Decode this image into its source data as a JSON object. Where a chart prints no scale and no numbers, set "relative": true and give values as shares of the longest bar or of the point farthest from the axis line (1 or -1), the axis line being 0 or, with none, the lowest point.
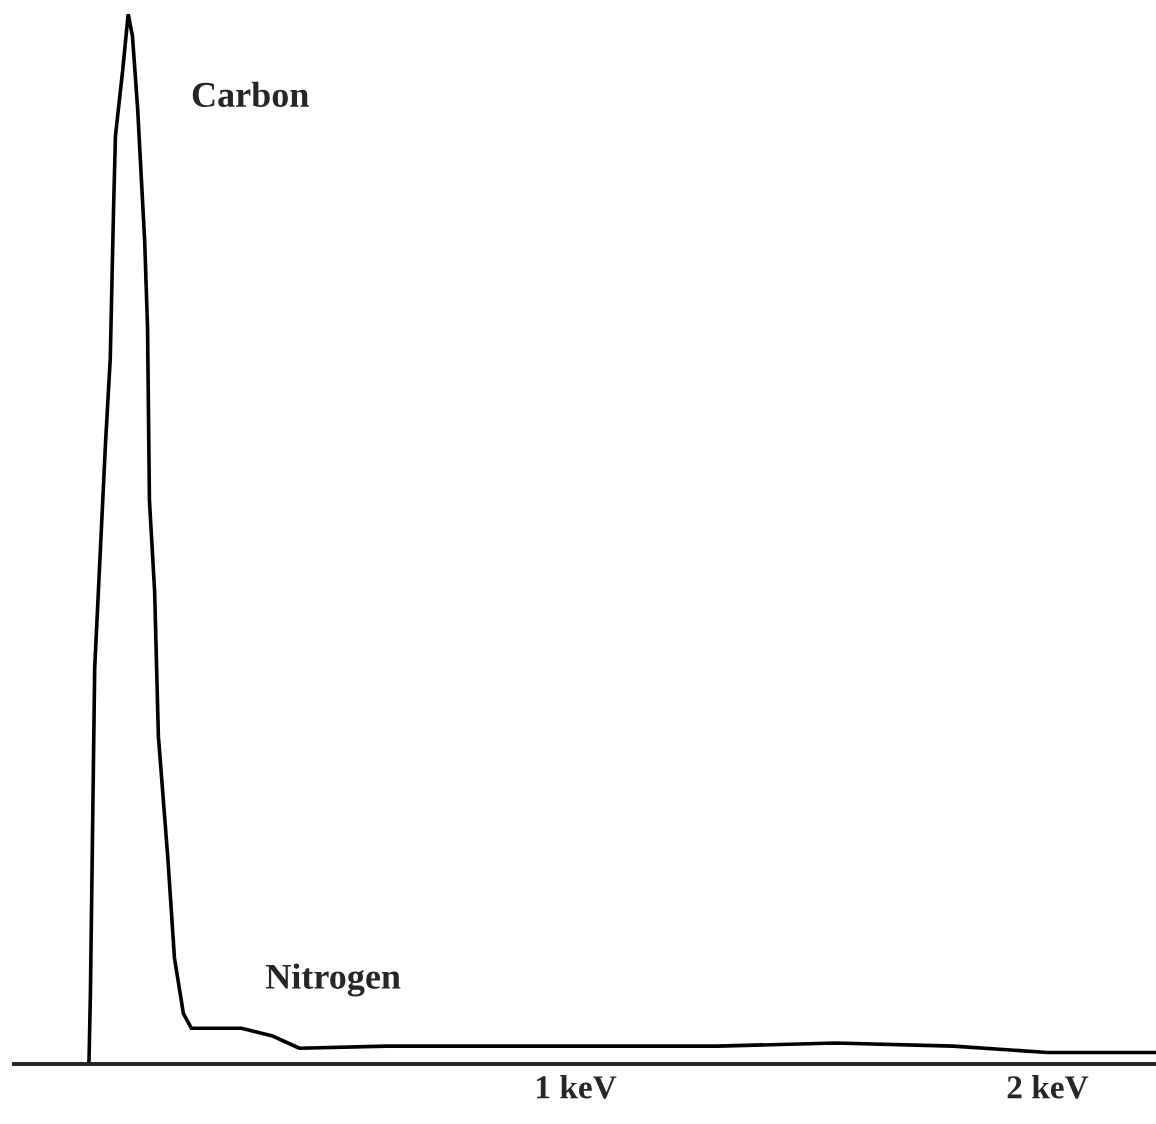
{
  "chart_data": {
    "type": "line",
    "relative": true,
    "x": [
      -0.032,
      -0.031,
      -0.028,
      -0.019,
      0.004,
      0.014,
      0.021,
      0.025,
      0.04,
      0.052,
      0.061,
      0.072,
      0.087,
      0.093,
      0.097,
      0.108,
      0.116,
      0.136,
      0.15,
      0.169,
      0.186,
      0.292,
      0.356,
      0.415,
      0.6,
      0.9,
      1.3,
      1.55,
      1.8,
      2.0,
      2.23
    ],
    "series": [
      {
        "color": "#000000",
        "values": [
          0,
          0.004,
          0.069,
          0.377,
          0.592,
          0.672,
          0.815,
          0.884,
          0.945,
          1,
          0.979,
          0.91,
          0.783,
          0.701,
          0.537,
          0.45,
          0.312,
          0.196,
          0.101,
          0.048,
          0.034,
          0.034,
          0.027,
          0.015,
          0.017,
          0.017,
          0.017,
          0.02,
          0.017,
          0.011,
          0.011
        ]
      }
    ],
    "xlim": [
      -0.19,
      2.23
    ],
    "xticks": [
      {
        "value": 1,
        "label": "1 keV"
      },
      {
        "value": 2,
        "label": "2 keV"
      }
    ],
    "grid": false,
    "legend": false,
    "marker": "none",
    "line_style": "solid",
    "annotations": [
      "Carbon",
      "Nitrogen"
    ]
  }
}
